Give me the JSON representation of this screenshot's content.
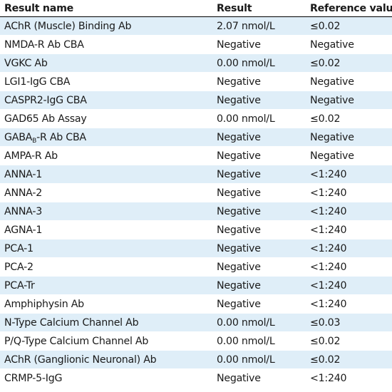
{
  "table": {
    "headers": {
      "name": "Result name",
      "result": "Result",
      "reference": "Reference value"
    },
    "rows": [
      {
        "name": "AChR (Muscle) Binding Ab",
        "result": "2.07 nmol/L",
        "reference": "≤0.02"
      },
      {
        "name": "NMDA-R Ab CBA",
        "result": "Negative",
        "reference": "Negative"
      },
      {
        "name": "VGKC Ab",
        "result": "0.00 nmol/L",
        "reference": "≤0.02"
      },
      {
        "name": "LGI1-IgG CBA",
        "result": "Negative",
        "reference": "Negative"
      },
      {
        "name": "CASPR2-IgG CBA",
        "result": "Negative",
        "reference": "Negative"
      },
      {
        "name": "GAD65 Ab Assay",
        "result": "0.00 nmol/L",
        "reference": "≤0.02"
      },
      {
        "name": "GABA",
        "name_sub": "B",
        "name_suffix": "-R Ab CBA",
        "result": "Negative",
        "reference": "Negative"
      },
      {
        "name": "AMPA-R Ab",
        "result": "Negative",
        "reference": "Negative"
      },
      {
        "name": "ANNA-1",
        "result": "Negative",
        "reference": "<1:240"
      },
      {
        "name": "ANNA-2",
        "result": "Negative",
        "reference": "<1:240"
      },
      {
        "name": "ANNA-3",
        "result": "Negative",
        "reference": "<1:240"
      },
      {
        "name": "AGNA-1",
        "result": "Negative",
        "reference": "<1:240"
      },
      {
        "name": "PCA-1",
        "result": "Negative",
        "reference": "<1:240"
      },
      {
        "name": "PCA-2",
        "result": "Negative",
        "reference": "<1:240"
      },
      {
        "name": "PCA-Tr",
        "result": "Negative",
        "reference": "<1:240"
      },
      {
        "name": "Amphiphysin Ab",
        "result": "Negative",
        "reference": "<1:240"
      },
      {
        "name": "N-Type Calcium Channel Ab",
        "result": "0.00 nmol/L",
        "reference": "≤0.03"
      },
      {
        "name": "P/Q-Type Calcium Channel Ab",
        "result": "0.00 nmol/L",
        "reference": "≤0.02"
      },
      {
        "name": "AChR (Ganglionic Neuronal) Ab",
        "result": "0.00 nmol/L",
        "reference": "≤0.02"
      },
      {
        "name": "CRMP-5-IgG",
        "result": "Negative",
        "reference": "<1:240"
      }
    ]
  },
  "colors": {
    "stripe": "#dfeef8",
    "header_rule": "#000000",
    "text": "#1a1a1a"
  }
}
